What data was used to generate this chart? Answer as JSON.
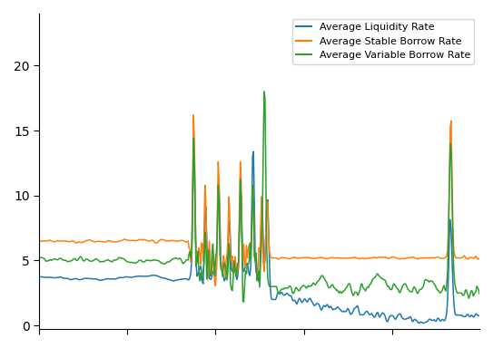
{
  "legend_labels": [
    "Average Liquidity Rate",
    "Average Stable Borrow Rate",
    "Average Variable Borrow Rate"
  ],
  "line_colors": [
    "#1f77b4",
    "#ff7f0e",
    "#2ca02c"
  ],
  "ylim": [
    -0.3,
    24
  ],
  "yticks": [
    0,
    5,
    10,
    15,
    20
  ],
  "linewidth": 1.1,
  "figsize": [
    5.43,
    3.84
  ],
  "dpi": 100
}
